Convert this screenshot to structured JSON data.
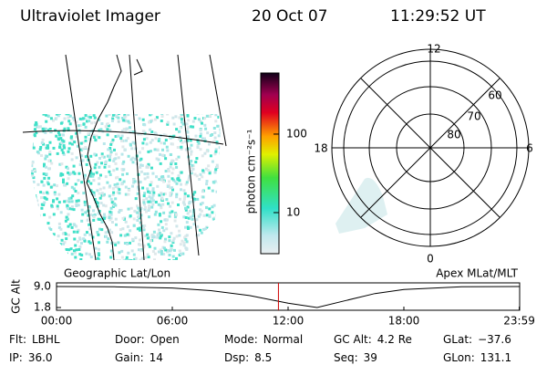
{
  "header": {
    "instrument": "Ultraviolet Imager",
    "date": "20 Oct 07",
    "time": "11:29:52 UT"
  },
  "map": {
    "label": "Geographic Lat/Lon"
  },
  "colorbar": {
    "label": "photon cm⁻²s⁻¹",
    "log": true,
    "range": [
      3,
      600
    ],
    "ticks": [
      10,
      100
    ]
  },
  "polar": {
    "label": "Apex MLat/MLT",
    "hour_labels": [
      12,
      18,
      6,
      0
    ],
    "lat_labels": [
      60,
      70,
      80
    ]
  },
  "timeline": {
    "ylabel": "GC Alt",
    "xlim": [
      0,
      24
    ],
    "ylim": [
      1.8,
      9.0
    ],
    "xticks": [
      {
        "value": 0,
        "label": "00:00"
      },
      {
        "value": 6,
        "label": "06:00"
      },
      {
        "value": 12,
        "label": "12:00"
      },
      {
        "value": 18,
        "label": "18:00"
      },
      {
        "value": 23.98,
        "label": "23:59"
      }
    ],
    "yticks": [
      {
        "value": 9.0,
        "label": "9.0"
      },
      {
        "value": 1.8,
        "label": "1.8"
      }
    ],
    "hours": [
      0,
      3,
      6,
      8,
      10,
      12,
      13.5,
      15,
      16.5,
      18,
      21,
      24
    ],
    "values": [
      9.0,
      8.9,
      8.5,
      7.6,
      5.9,
      3.3,
      1.8,
      4.2,
      6.6,
      8.0,
      8.9,
      9.0
    ],
    "marker": 11.5
  },
  "status": [
    [
      [
        "Flt:",
        "LBHL"
      ],
      [
        "Door:",
        "Open"
      ],
      [
        "Mode:",
        "Normal"
      ],
      [
        "GC Alt:",
        "4.2 Re"
      ],
      [
        "GLat:",
        "−37.6"
      ]
    ],
    [
      [
        "IP:",
        "36.0"
      ],
      [
        "Gain:",
        "14"
      ],
      [
        "Dsp:",
        "8.5"
      ],
      [
        "Seq:",
        "39"
      ],
      [
        "GLon:",
        "131.1"
      ]
    ]
  ]
}
